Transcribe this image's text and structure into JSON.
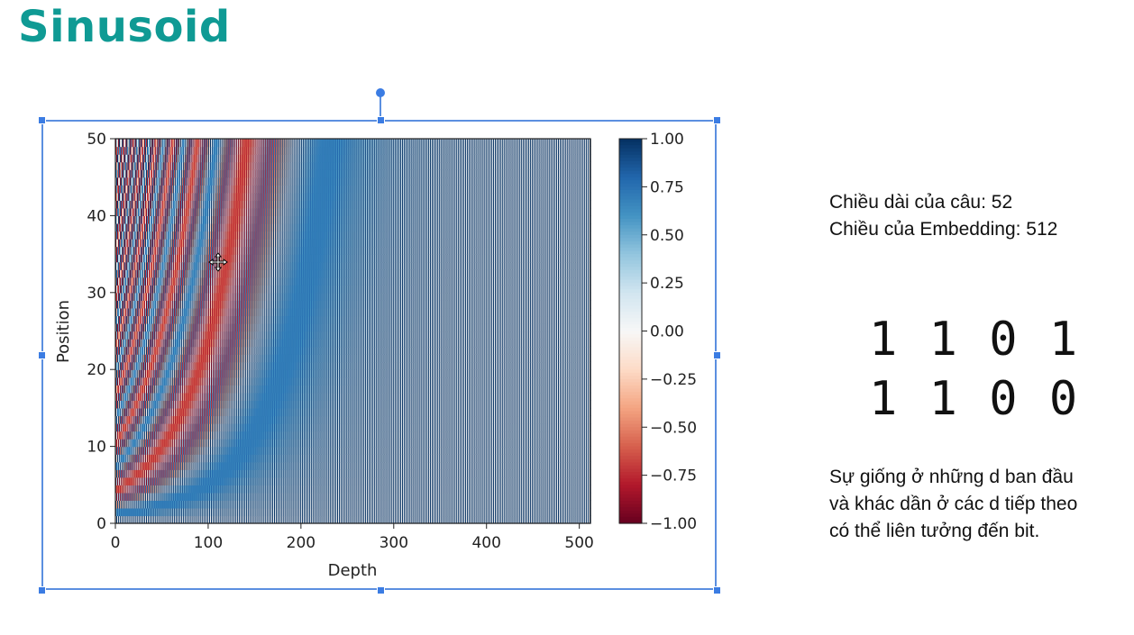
{
  "slide": {
    "title": "Sinusoid",
    "info_lines": [
      "Chiều dài của câu: 52",
      "Chiều của Embedding: 512"
    ],
    "bits": [
      "1 1 0 1",
      "1 1 0 0"
    ],
    "note_lines": [
      "Sự giống ở những d ban đầu",
      "và khác dần ở các d tiếp theo",
      "có thể liên tưởng đến bit."
    ]
  },
  "chart_data": {
    "type": "heatmap",
    "title": "",
    "xlabel": "Depth",
    "ylabel": "Position",
    "xlim": [
      0,
      512
    ],
    "ylim": [
      0,
      50
    ],
    "x_ticks": [
      "0",
      "100",
      "200",
      "300",
      "400",
      "500"
    ],
    "y_ticks": [
      "0",
      "10",
      "20",
      "30",
      "40",
      "50"
    ],
    "colormap": "RdBu",
    "colorbar": {
      "vmin": -1.0,
      "vmax": 1.0,
      "ticks": [
        "1.00",
        "0.75",
        "0.50",
        "0.25",
        "0.00",
        "−0.25",
        "−0.50",
        "−0.75",
        "−1.00"
      ]
    },
    "function": "sinusoidal positional encoding"
  },
  "colors": {
    "title": "#0f9a94",
    "selection": "#5b8fe0",
    "cmap_low": "#67001f",
    "cmap_mid": "#f7f7f7",
    "cmap_high": "#053061"
  }
}
